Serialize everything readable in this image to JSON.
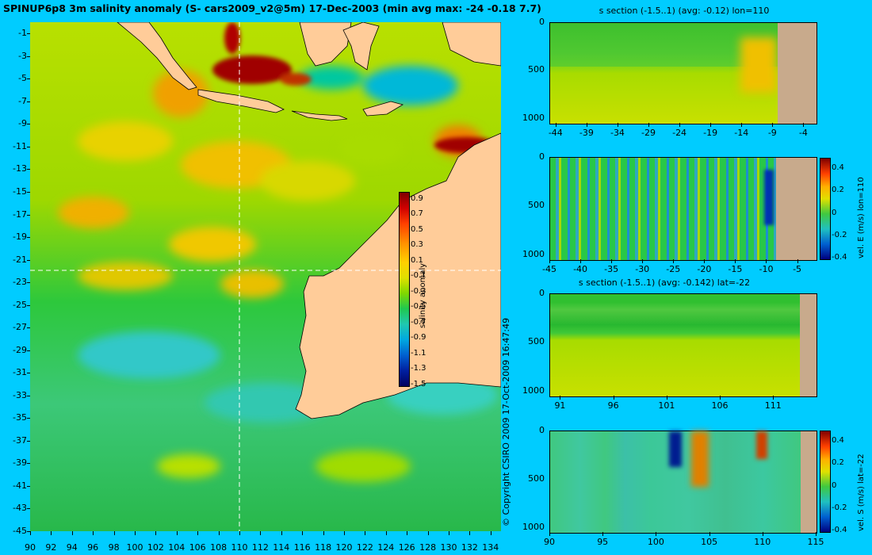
{
  "title": "SPINUP6p8 3m salinity anomaly (S- cars2009_v2@5m) 17-Dec-2003 (min avg max: -24 -0.18 7.7)",
  "copyright": "© Copyright CSIRO 2009  17-Oct-2009 16:47:49",
  "colors": {
    "background": "#00CCFF",
    "land": "#FFCC99",
    "section_land": "#C8AA8C",
    "crosshair": "#FFFFFF"
  },
  "chart_data": [
    {
      "type": "heatmap",
      "name_id": "salinity-map",
      "xlim": [
        90,
        135
      ],
      "ylim": [
        -45,
        0
      ],
      "x_ticks": [
        "90",
        "92",
        "94",
        "96",
        "98",
        "100",
        "102",
        "104",
        "106",
        "108",
        "110",
        "112",
        "114",
        "116",
        "118",
        "120",
        "122",
        "124",
        "126",
        "128",
        "130",
        "132",
        "134"
      ],
      "y_ticks": [
        "-1",
        "-3",
        "-5",
        "-7",
        "-9",
        "-11",
        "-13",
        "-15",
        "-17",
        "-19",
        "-21",
        "-23",
        "-25",
        "-27",
        "-29",
        "-31",
        "-33",
        "-35",
        "-37",
        "-39",
        "-41",
        "-43",
        "-45"
      ],
      "crosshair": {
        "lon": 110,
        "lat": -22
      },
      "colorbar": {
        "label": "salinity anomaly",
        "range": [
          -1.5,
          1.0
        ],
        "ticks": [
          "0.9",
          "0.7",
          "0.5",
          "0.3",
          "0.1",
          "-0.1",
          "-0.3",
          "-0.5",
          "-0.7",
          "-0.9",
          "-1.1",
          "-1.3",
          "-1.5"
        ]
      }
    },
    {
      "type": "heatmap",
      "name_id": "section-1",
      "title": "s section (-1.5..1) (avg: -0.12) lon=110",
      "xlim": [
        -45,
        -2
      ],
      "ylim": [
        0,
        1050
      ],
      "x_ticks": [
        "-44",
        "-39",
        "-34",
        "-29",
        "-24",
        "-19",
        "-14",
        "-9",
        "-4"
      ],
      "y_ticks": [
        "0",
        "500",
        "1000"
      ]
    },
    {
      "type": "heatmap",
      "name_id": "section-2",
      "title": "",
      "xlim": [
        -45,
        -2
      ],
      "ylim": [
        0,
        1050
      ],
      "x_ticks": [
        "-45",
        "-40",
        "-35",
        "-30",
        "-25",
        "-20",
        "-15",
        "-10",
        "-5"
      ],
      "y_ticks": [
        "0",
        "500",
        "1000"
      ],
      "colorbar": {
        "label": "vel. E (m/s) lon=110",
        "range": [
          -0.4,
          0.5
        ],
        "ticks": [
          "0.4",
          "0.2",
          "0",
          "-0.2",
          "-0.4"
        ]
      }
    },
    {
      "type": "heatmap",
      "name_id": "section-3",
      "title": "s section (-1.5..1) (avg: -0.142) lat=-22",
      "xlim": [
        90,
        115
      ],
      "ylim": [
        0,
        1050
      ],
      "x_ticks": [
        "91",
        "96",
        "101",
        "106",
        "111"
      ],
      "y_ticks": [
        "0",
        "500",
        "1000"
      ]
    },
    {
      "type": "heatmap",
      "name_id": "section-4",
      "title": "",
      "xlim": [
        90,
        115
      ],
      "ylim": [
        0,
        1050
      ],
      "x_ticks": [
        "90",
        "95",
        "100",
        "105",
        "110",
        "115"
      ],
      "y_ticks": [
        "0",
        "500",
        "1000"
      ],
      "colorbar": {
        "label": "vel. S (m/s) lat=-22",
        "range": [
          -0.4,
          0.5
        ],
        "ticks": [
          "0.4",
          "0.2",
          "0",
          "-0.2",
          "-0.4"
        ]
      }
    }
  ]
}
